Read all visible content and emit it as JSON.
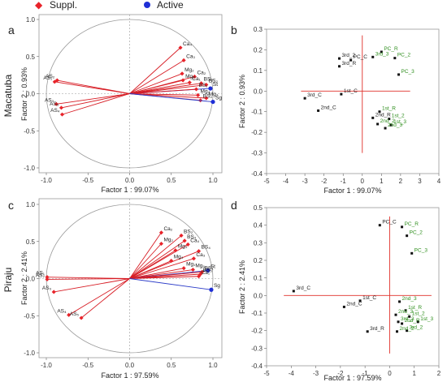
{
  "legend": {
    "items": [
      {
        "label": "Suppl.",
        "color": "#e8232a"
      },
      {
        "label": "Active",
        "color": "#1f2fd6"
      }
    ]
  },
  "colors": {
    "circle_vectors": "#d71c24",
    "active_vector": "#2b3bc8",
    "axis_cross": "#e0302a",
    "green_label": "#2f8f1e",
    "black_label": "#222222"
  },
  "chart_data": [
    {
      "panel": "a",
      "type": "scatter",
      "subtype": "correlation-circle",
      "side_label": "Macatuba",
      "xlabel": "Factor 1 : 99.07%",
      "ylabel": "Factor 2 : 0.93%",
      "xlim": [
        -1.0,
        1.0
      ],
      "ylim": [
        -1.0,
        1.0
      ],
      "xticks": [
        "-1.0",
        "-0.5",
        "0.0",
        "0.5",
        "1.0"
      ],
      "yticks": [
        "-1.0",
        "-0.5",
        "0.0",
        "0.5",
        "1.0"
      ],
      "points": [
        {
          "label": "Ca₄",
          "x": 0.61,
          "y": 0.62,
          "kind": "suppl"
        },
        {
          "label": "Ca₃",
          "x": 0.65,
          "y": 0.45,
          "kind": "suppl"
        },
        {
          "label": "Mg₂",
          "x": 0.63,
          "y": 0.27,
          "kind": "suppl"
        },
        {
          "label": "Ca₂",
          "x": 0.78,
          "y": 0.23,
          "kind": "suppl"
        },
        {
          "label": "Mg₁",
          "x": 0.64,
          "y": 0.18,
          "kind": "suppl"
        },
        {
          "label": "Ca₁",
          "x": 0.72,
          "y": 0.15,
          "kind": "suppl"
        },
        {
          "label": "BS₃",
          "x": 0.86,
          "y": 0.14,
          "kind": "suppl"
        },
        {
          "label": "BS₂",
          "x": 0.92,
          "y": 0.12,
          "kind": "suppl"
        },
        {
          "label": "St",
          "x": 0.97,
          "y": 0.07,
          "kind": "active"
        },
        {
          "label": "BS₁",
          "x": 0.8,
          "y": 0.06,
          "kind": "suppl"
        },
        {
          "label": "Mg₄",
          "x": 0.82,
          "y": -0.02,
          "kind": "suppl"
        },
        {
          "label": "Mg₃",
          "x": 0.92,
          "y": -0.06,
          "kind": "suppl"
        },
        {
          "label": "BS₄",
          "x": 0.85,
          "y": -0.09,
          "kind": "suppl"
        },
        {
          "label": "Sg",
          "x": 1.0,
          "y": -0.11,
          "kind": "active"
        },
        {
          "label": "AS₁",
          "x": -0.9,
          "y": 0.16,
          "kind": "suppl"
        },
        {
          "label": "AS₂",
          "x": -0.87,
          "y": 0.18,
          "kind": "suppl"
        },
        {
          "label": "AS₃",
          "x": -0.88,
          "y": -0.14,
          "kind": "suppl"
        },
        {
          "label": "AS₄",
          "x": -0.81,
          "y": -0.28,
          "kind": "suppl"
        },
        {
          "label": "AS₅",
          "x": -0.82,
          "y": -0.19,
          "kind": "suppl"
        }
      ]
    },
    {
      "panel": "b",
      "type": "scatter",
      "xlabel": "Factor 1 : 99.07%",
      "ylabel": "Factor 2 : 0.93%",
      "xlim": [
        -5,
        4
      ],
      "ylim": [
        -0.4,
        0.3
      ],
      "xticks": [
        "-5",
        "-4",
        "-3",
        "-2",
        "-1",
        "0",
        "1",
        "2",
        "3",
        "4"
      ],
      "yticks": [
        "0.3",
        "0.2",
        "0.1",
        "0.0",
        "-0.1",
        "-0.2",
        "-0.3",
        "-0.4"
      ],
      "cross_x": [
        -3.2,
        2.5
      ],
      "cross_y": [
        -0.3,
        0.27
      ],
      "points": [
        {
          "label": "PC_R",
          "x": 1.0,
          "y": 0.19,
          "color": "green"
        },
        {
          "label": "3rd_3",
          "x": 0.55,
          "y": 0.165,
          "color": "green"
        },
        {
          "label": "PC_2",
          "x": 1.7,
          "y": 0.16,
          "color": "green"
        },
        {
          "label": "3rd_2",
          "x": -1.2,
          "y": 0.158,
          "color": "black"
        },
        {
          "label": "PC_C",
          "x": -0.6,
          "y": 0.15,
          "color": "black"
        },
        {
          "label": "3rd_R",
          "x": -1.2,
          "y": 0.12,
          "color": "black"
        },
        {
          "label": "PC_3",
          "x": 1.9,
          "y": 0.08,
          "color": "green"
        },
        {
          "label": "1st_C",
          "x": -1.1,
          "y": -0.015,
          "color": "black"
        },
        {
          "label": "3rd_C",
          "x": -3.0,
          "y": -0.035,
          "color": "black"
        },
        {
          "label": "2nd_C",
          "x": -2.3,
          "y": -0.095,
          "color": "black"
        },
        {
          "label": "1st_R",
          "x": 0.9,
          "y": -0.1,
          "color": "green"
        },
        {
          "label": "1st_2",
          "x": 1.4,
          "y": -0.135,
          "color": "green"
        },
        {
          "label": "2nd_R",
          "x": 0.55,
          "y": -0.13,
          "color": "black"
        },
        {
          "label": "2nd_2",
          "x": 0.8,
          "y": -0.16,
          "color": "green"
        },
        {
          "label": "1st_3",
          "x": 1.5,
          "y": -0.165,
          "color": "green"
        },
        {
          "label": "2nd_3",
          "x": 1.2,
          "y": -0.18,
          "color": "green"
        }
      ]
    },
    {
      "panel": "c",
      "type": "scatter",
      "subtype": "correlation-circle",
      "side_label": "Piraju",
      "xlabel": "Factor 1 : 97.59%",
      "ylabel": "Factor 2 : 2.41%",
      "xlim": [
        -1.0,
        1.0
      ],
      "ylim": [
        -1.0,
        1.0
      ],
      "xticks": [
        "-1.0",
        "-0.5",
        "0.0",
        "0.5",
        "1.0"
      ],
      "yticks": [
        "-1.0",
        "-0.5",
        "0.0",
        "0.5",
        "1.0"
      ],
      "points": [
        {
          "label": "Ca₂",
          "x": 0.38,
          "y": 0.62,
          "kind": "suppl"
        },
        {
          "label": "BS₂",
          "x": 0.62,
          "y": 0.58,
          "kind": "suppl"
        },
        {
          "label": "BS₃",
          "x": 0.66,
          "y": 0.51,
          "kind": "suppl"
        },
        {
          "label": "Mg₂",
          "x": 0.38,
          "y": 0.47,
          "kind": "suppl"
        },
        {
          "label": "Ca₄",
          "x": 0.7,
          "y": 0.46,
          "kind": "suppl"
        },
        {
          "label": "Mg₃",
          "x": 0.55,
          "y": 0.38,
          "kind": "suppl"
        },
        {
          "label": "BS₄",
          "x": 0.83,
          "y": 0.37,
          "kind": "suppl"
        },
        {
          "label": "Ca₃",
          "x": 0.77,
          "y": 0.27,
          "kind": "suppl"
        },
        {
          "label": "Mg₄",
          "x": 0.5,
          "y": 0.24,
          "kind": "suppl"
        },
        {
          "label": "Mg₁",
          "x": 0.65,
          "y": 0.14,
          "kind": "suppl"
        },
        {
          "label": "Mg₅",
          "x": 0.76,
          "y": 0.12,
          "kind": "suppl"
        },
        {
          "label": "St",
          "x": 0.94,
          "y": 0.11,
          "kind": "active"
        },
        {
          "label": "BS₁",
          "x": 0.87,
          "y": 0.09,
          "kind": "suppl"
        },
        {
          "label": "BS₅",
          "x": 0.85,
          "y": 0.06,
          "kind": "suppl"
        },
        {
          "label": "Ca₁",
          "x": 0.83,
          "y": 0.03,
          "kind": "suppl"
        },
        {
          "label": "Sg",
          "x": 0.98,
          "y": -0.15,
          "kind": "active"
        },
        {
          "label": "AS₁",
          "x": -0.99,
          "y": 0.02,
          "kind": "suppl"
        },
        {
          "label": "AS₂",
          "x": -0.99,
          "y": -0.01,
          "kind": "suppl"
        },
        {
          "label": "AS₃",
          "x": -0.91,
          "y": -0.18,
          "kind": "suppl"
        },
        {
          "label": "AS₄",
          "x": -0.73,
          "y": -0.49,
          "kind": "suppl"
        },
        {
          "label": "AS₅",
          "x": -0.58,
          "y": -0.53,
          "kind": "suppl"
        }
      ]
    },
    {
      "panel": "d",
      "type": "scatter",
      "xlabel": "Factor 1 : 97.59%",
      "ylabel": "Factor 2 : 2.41%",
      "xlim": [
        -5,
        2
      ],
      "ylim": [
        -0.4,
        0.5
      ],
      "xticks": [
        "-5",
        "-4",
        "-3",
        "-2",
        "-1",
        "0",
        "1",
        "2"
      ],
      "yticks": [
        "0.5",
        "0.4",
        "0.3",
        "0.2",
        "0.1",
        "0.0",
        "-0.1",
        "-0.2",
        "-0.3",
        "-0.4"
      ],
      "cross_x": [
        -4.3,
        1.7
      ],
      "cross_y": [
        -0.33,
        0.45
      ],
      "points": [
        {
          "label": "PC_C",
          "x": -0.4,
          "y": 0.4,
          "color": "black"
        },
        {
          "label": "PC_R",
          "x": 0.5,
          "y": 0.39,
          "color": "green"
        },
        {
          "label": "PC_2",
          "x": 0.7,
          "y": 0.34,
          "color": "green"
        },
        {
          "label": "PC_3",
          "x": 0.9,
          "y": 0.24,
          "color": "green"
        },
        {
          "label": "3rd_C",
          "x": -3.9,
          "y": 0.025,
          "color": "black"
        },
        {
          "label": "1st_C",
          "x": -1.2,
          "y": -0.03,
          "color": "black"
        },
        {
          "label": "2nd_C",
          "x": -1.85,
          "y": -0.065,
          "color": "black"
        },
        {
          "label": "2nd_3",
          "x": 0.4,
          "y": -0.035,
          "color": "green"
        },
        {
          "label": "1st_R",
          "x": 0.65,
          "y": -0.085,
          "color": "green"
        },
        {
          "label": "2nd_3",
          "x": 0.25,
          "y": -0.11,
          "color": "green"
        },
        {
          "label": "1st_2",
          "x": 0.8,
          "y": -0.12,
          "color": "green"
        },
        {
          "label": "3rd_3",
          "x": 0.35,
          "y": -0.15,
          "color": "green"
        },
        {
          "label": "1st_3",
          "x": 1.15,
          "y": -0.15,
          "color": "green"
        },
        {
          "label": "2nd_R",
          "x": 0.5,
          "y": -0.16,
          "color": "green"
        },
        {
          "label": "3rd_2",
          "x": 0.7,
          "y": -0.2,
          "color": "green"
        },
        {
          "label": "3rd_R",
          "x": -0.9,
          "y": -0.205,
          "color": "black"
        },
        {
          "label": "2nd_2",
          "x": 0.3,
          "y": -0.205,
          "color": "green"
        }
      ]
    }
  ]
}
